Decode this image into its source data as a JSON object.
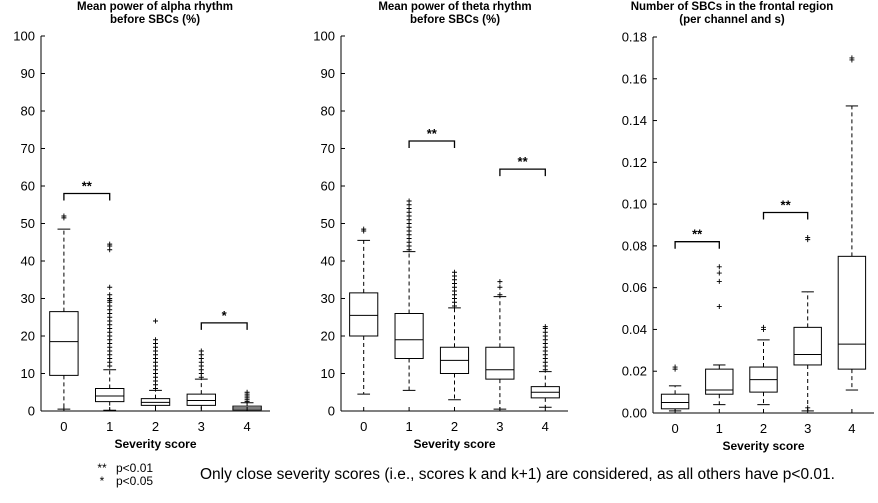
{
  "chart_data": [
    {
      "type": "box",
      "title": [
        "Mean power of alpha rhythm",
        "before SBCs (%)"
      ],
      "xlabel": "Severity score",
      "ylabel": "",
      "categories": [
        "0",
        "1",
        "2",
        "3",
        "4"
      ],
      "ylim": [
        0,
        100
      ],
      "yticks": [
        "0",
        "10",
        "20",
        "30",
        "40",
        "50",
        "60",
        "70",
        "80",
        "90",
        "100"
      ],
      "boxes": [
        {
          "min": 0.5,
          "q1": 9.5,
          "median": 18.5,
          "q3": 26.5,
          "max": 48.5,
          "outliers": [
            51.5,
            52
          ]
        },
        {
          "min": 0.2,
          "q1": 2.5,
          "median": 4,
          "q3": 6,
          "max": 11,
          "outliers": [
            12,
            13,
            14,
            15,
            16,
            17,
            18,
            19,
            20,
            21,
            22,
            23,
            24,
            25,
            26,
            27,
            28,
            29,
            29.5,
            30,
            31,
            33,
            43,
            44,
            44.5
          ]
        },
        {
          "min": 0,
          "q1": 1.5,
          "median": 2.3,
          "q3": 3.3,
          "max": 5.5,
          "outliers": [
            6,
            7,
            8,
            9,
            10,
            11,
            12,
            13,
            14,
            15,
            16,
            17,
            18,
            19,
            24
          ]
        },
        {
          "min": 0,
          "q1": 1.5,
          "median": 2.8,
          "q3": 4.5,
          "max": 8.5,
          "outliers": [
            9,
            10,
            11,
            12,
            13,
            14,
            15,
            16
          ]
        },
        {
          "min": 0,
          "q1": 0.3,
          "median": 0.8,
          "q3": 1.3,
          "max": 2.2,
          "outliers": [
            2.5,
            3,
            3.5,
            4,
            4.5,
            5
          ]
        }
      ],
      "significance": [
        {
          "from": 0,
          "to": 1,
          "y": 58,
          "label": "**"
        },
        {
          "from": 3,
          "to": 4,
          "y": 23.5,
          "label": "*"
        }
      ]
    },
    {
      "type": "box",
      "title": [
        "Mean power of theta rhythm",
        "before SBCs (%)"
      ],
      "xlabel": "Severity score",
      "ylabel": "",
      "categories": [
        "0",
        "1",
        "2",
        "3",
        "4"
      ],
      "ylim": [
        0,
        100
      ],
      "yticks": [
        "0",
        "10",
        "20",
        "30",
        "40",
        "50",
        "60",
        "70",
        "80",
        "90",
        "100"
      ],
      "boxes": [
        {
          "min": 4.5,
          "q1": 20,
          "median": 25.5,
          "q3": 31.5,
          "max": 45.5,
          "outliers": [
            48,
            48.5
          ]
        },
        {
          "min": 5.5,
          "q1": 14,
          "median": 19,
          "q3": 26,
          "max": 42.5,
          "outliers": [
            43,
            44,
            45,
            46,
            47,
            48,
            49,
            50,
            51,
            52,
            53,
            54,
            55,
            56
          ]
        },
        {
          "min": 3,
          "q1": 10,
          "median": 13.5,
          "q3": 17,
          "max": 27.5,
          "outliers": [
            28,
            29,
            30,
            31,
            32,
            33,
            34,
            35,
            36,
            37
          ]
        },
        {
          "min": 0.5,
          "q1": 8.5,
          "median": 11,
          "q3": 17,
          "max": 30.5,
          "outliers": [
            31,
            33,
            34.5
          ]
        },
        {
          "min": 1,
          "q1": 3.5,
          "median": 5,
          "q3": 6.5,
          "max": 10.5,
          "outliers": [
            11,
            12,
            13,
            14,
            15,
            16,
            17,
            18,
            19,
            20,
            21,
            22,
            22.5
          ]
        }
      ],
      "significance": [
        {
          "from": 1,
          "to": 2,
          "y": 72,
          "label": "**"
        },
        {
          "from": 3,
          "to": 4,
          "y": 64.5,
          "label": "**"
        }
      ]
    },
    {
      "type": "box",
      "title": [
        "Number of SBCs in the frontal region",
        "(per channel and s)"
      ],
      "xlabel": "Severity score",
      "ylabel": "",
      "categories": [
        "0",
        "1",
        "2",
        "3",
        "4"
      ],
      "ylim": [
        0,
        0.18
      ],
      "yticks": [
        "0.00",
        "0.02",
        "0.04",
        "0.06",
        "0.08",
        "0.10",
        "0.12",
        "0.14",
        "0.16",
        "0.18"
      ],
      "boxes": [
        {
          "min": 0.001,
          "q1": 0.002,
          "median": 0.005,
          "q3": 0.009,
          "max": 0.013,
          "outliers": [
            0.021,
            0.022
          ]
        },
        {
          "min": 0.004,
          "q1": 0.009,
          "median": 0.011,
          "q3": 0.021,
          "max": 0.023,
          "outliers": [
            0.051,
            0.063,
            0.067,
            0.07
          ]
        },
        {
          "min": 0.004,
          "q1": 0.01,
          "median": 0.016,
          "q3": 0.022,
          "max": 0.035,
          "outliers": [
            0.04,
            0.041
          ]
        },
        {
          "min": 0.001,
          "q1": 0.023,
          "median": 0.028,
          "q3": 0.041,
          "max": 0.058,
          "outliers": [
            0.0025,
            0.083,
            0.084
          ]
        },
        {
          "min": 0.011,
          "q1": 0.021,
          "median": 0.033,
          "q3": 0.075,
          "max": 0.147,
          "outliers": [
            0.169,
            0.17
          ]
        }
      ],
      "significance": [
        {
          "from": 0,
          "to": 1,
          "y": 0.082,
          "label": "**"
        },
        {
          "from": 2,
          "to": 3,
          "y": 0.096,
          "label": "**"
        }
      ]
    }
  ],
  "legend": {
    "items": [
      {
        "symbol": "**",
        "text": "p<0.01"
      },
      {
        "symbol": "*",
        "text": "p<0.05"
      }
    ]
  },
  "footnote": "Only close severity scores (i.e., scores k and k+1) are considered, as all others have p<0.01."
}
